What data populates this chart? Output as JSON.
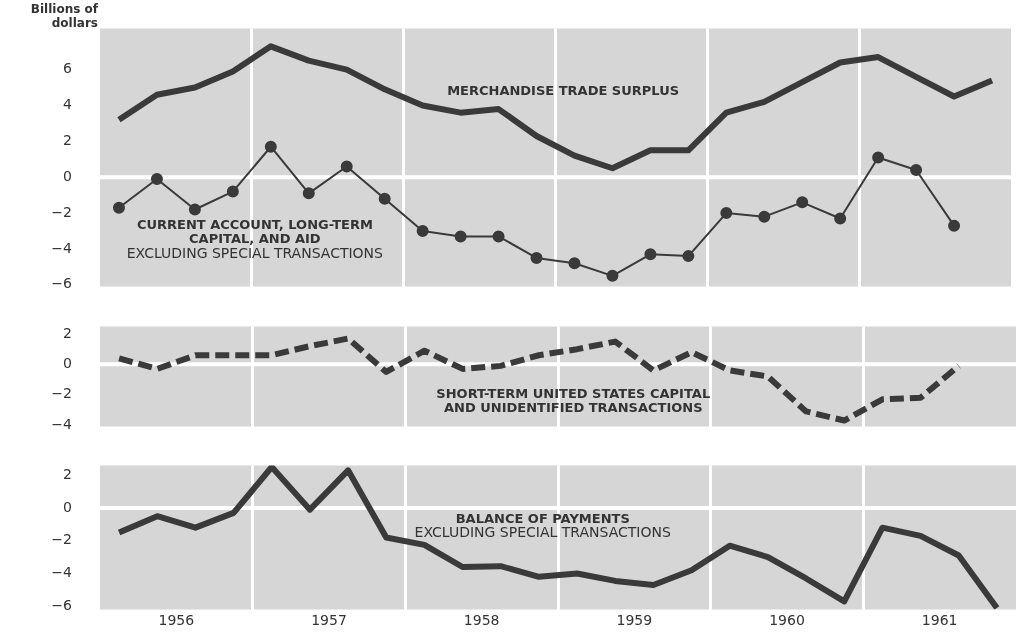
{
  "chart_data": [
    {
      "type": "line",
      "ylabel": "Billions of dollars",
      "xlim": [
        1956,
        1962
      ],
      "ylim": [
        -6.1,
        8.3
      ],
      "yticks": [
        -6,
        -4,
        -2,
        0,
        2,
        4,
        6
      ],
      "xticks": [
        {
          "value": 1957,
          "label": null
        },
        {
          "value": 1958,
          "label": null
        },
        {
          "value": 1959,
          "label": null
        },
        {
          "value": 1960,
          "label": null
        },
        {
          "value": 1961,
          "label": null
        }
      ],
      "tick_labels": "y",
      "grid": "x",
      "legend": false,
      "x": [
        1956.125,
        1956.375,
        1956.625,
        1956.875,
        1957.125,
        1957.375,
        1957.625,
        1957.875,
        1958.125,
        1958.375,
        1958.625,
        1958.875,
        1959.125,
        1959.375,
        1959.625,
        1959.875,
        1960.125,
        1960.375,
        1960.625,
        1960.875,
        1961.125,
        1961.375,
        1961.625,
        1961.875
      ],
      "ref_lines": [
        {
          "axis": "y",
          "value": 0,
          "color": "#ffffff"
        }
      ],
      "series": [
        {
          "name": "MERCHANDISE TRADE SURPLUS",
          "color": "#3a3a3a",
          "marker": "none",
          "values": [
            3.2,
            4.6,
            5.0,
            5.9,
            7.3,
            6.5,
            6.0,
            4.9,
            4.0,
            3.6,
            3.8,
            2.3,
            1.2,
            0.5,
            1.5,
            1.5,
            3.6,
            4.2,
            5.3,
            6.4,
            6.7,
            5.6,
            4.5,
            5.4
          ]
        },
        {
          "name": "CURRENT ACCOUNT, LONG-TERM\nCAPITAL, AND AID",
          "color": "#3a3a3a",
          "marker": "circle",
          "x": [
            1956.125,
            1956.375,
            1956.625,
            1956.875,
            1957.125,
            1957.375,
            1957.625,
            1957.875,
            1958.125,
            1958.375,
            1958.625,
            1958.875,
            1959.125,
            1959.375,
            1959.625,
            1959.875,
            1960.125,
            1960.375,
            1960.625,
            1960.875,
            1961.125,
            1961.375,
            1961.625
          ],
          "values": [
            -1.7,
            -0.1,
            -1.8,
            -0.8,
            1.7,
            -0.9,
            0.6,
            -1.2,
            -3.0,
            -3.3,
            -3.3,
            -4.5,
            -4.8,
            -5.5,
            -4.3,
            -4.4,
            -2.0,
            -2.2,
            -1.4,
            -2.3,
            1.1,
            0.4,
            -2.7
          ]
        }
      ],
      "annotations": [
        "EXCLUDING SPECIAL TRANSACTIONS"
      ]
    },
    {
      "type": "line",
      "xlim": [
        1956,
        1962
      ],
      "ylim": [
        -4.1,
        2.5
      ],
      "yticks": [
        -4,
        -2,
        0,
        2
      ],
      "xticks": [
        {
          "value": 1957,
          "label": null
        },
        {
          "value": 1958,
          "label": null
        },
        {
          "value": 1959,
          "label": null
        },
        {
          "value": 1960,
          "label": null
        },
        {
          "value": 1961,
          "label": null
        }
      ],
      "tick_labels": "y",
      "grid": "x",
      "legend": false,
      "line_style": "dashed",
      "ref_lines": [
        {
          "axis": "y",
          "value": 0,
          "color": "#ffffff"
        }
      ],
      "series": [
        {
          "name": "SHORT-TERM UNITED STATES CAPITAL\nAND UNIDENTIFIED TRANSACTIONS",
          "color": "#3a3a3a",
          "x": [
            1956.125,
            1956.375,
            1956.625,
            1956.875,
            1957.125,
            1957.375,
            1957.625,
            1957.875,
            1958.125,
            1958.375,
            1958.625,
            1958.875,
            1959.125,
            1959.375,
            1959.625,
            1959.875,
            1960.125,
            1960.375,
            1960.625,
            1960.875,
            1961.125,
            1961.375,
            1961.625
          ],
          "values": [
            0.4,
            -0.3,
            0.6,
            0.6,
            0.6,
            1.2,
            1.7,
            -0.5,
            0.9,
            -0.3,
            -0.1,
            0.6,
            1.0,
            1.5,
            -0.4,
            0.8,
            -0.4,
            -0.8,
            -3.1,
            -3.7,
            -2.3,
            -2.2,
            -0.1
          ]
        }
      ]
    },
    {
      "type": "line",
      "xlim": [
        1956,
        1962
      ],
      "ylim": [
        -6.2,
        2.6
      ],
      "yticks": [
        -6,
        -4,
        -2,
        0,
        2
      ],
      "xticks": [
        {
          "value": 1956.5,
          "label": "1956"
        },
        {
          "value": 1957,
          "label": null
        },
        {
          "value": 1957.5,
          "label": "1957"
        },
        {
          "value": 1958,
          "label": null
        },
        {
          "value": 1958.5,
          "label": "1958"
        },
        {
          "value": 1959,
          "label": null
        },
        {
          "value": 1959.5,
          "label": "1959"
        },
        {
          "value": 1960,
          "label": null
        },
        {
          "value": 1960.5,
          "label": "1960"
        },
        {
          "value": 1961,
          "label": null
        },
        {
          "value": 1961.5,
          "label": "1961"
        }
      ],
      "grid": "x",
      "legend": false,
      "x": [
        1956.125,
        1956.375,
        1956.625,
        1956.875,
        1957.125,
        1957.375,
        1957.625,
        1957.875,
        1958.125,
        1958.375,
        1958.625,
        1958.875,
        1959.125,
        1959.375,
        1959.625,
        1959.875,
        1960.125,
        1960.375,
        1960.625,
        1960.875,
        1961.125,
        1961.375,
        1961.625,
        1961.875
      ],
      "ref_lines": [
        {
          "axis": "y",
          "value": 0,
          "color": "#ffffff"
        }
      ],
      "series": [
        {
          "name": "BALANCE OF PAYMENTS",
          "color": "#3a3a3a",
          "values": [
            -1.5,
            -0.5,
            -1.2,
            -0.3,
            2.5,
            -0.1,
            2.3,
            -1.8,
            -2.25,
            -3.6,
            -3.55,
            -4.2,
            -4.0,
            -4.45,
            -4.7,
            -3.8,
            -2.3,
            -3.0,
            -4.3,
            -5.7,
            -1.2,
            -1.7,
            -2.9,
            -6.1
          ]
        }
      ],
      "annotations": [
        "EXCLUDING SPECIAL TRANSACTIONS"
      ]
    }
  ]
}
